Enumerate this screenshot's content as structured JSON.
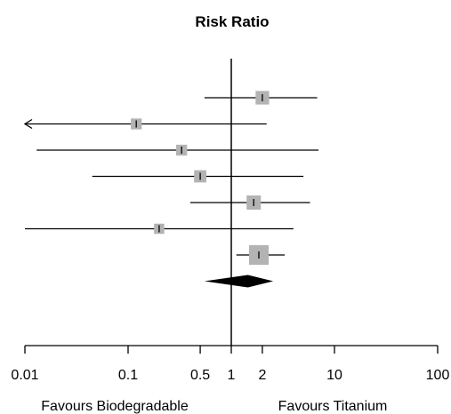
{
  "chart_data": {
    "type": "forest",
    "title": "Risk Ratio",
    "x_scale": "log",
    "xlim": [
      0.01,
      100
    ],
    "null_value": 1,
    "x_ticks": [
      0.01,
      0.1,
      0.5,
      1,
      2,
      10,
      100
    ],
    "x_tick_labels": [
      "0.01",
      "0.1",
      "0.5",
      "1",
      "2",
      "10",
      "100"
    ],
    "favours_left": "Favours Biodegradable",
    "favours_right": "Favours Titanium",
    "colors": {
      "square": "#b3b3b3",
      "line": "#000000",
      "diamond": "#000000"
    },
    "studies": [
      {
        "estimate": 2.0,
        "lower": 0.55,
        "upper": 6.8,
        "weight": 0.55,
        "arrow_left": false,
        "arrow_right": false
      },
      {
        "estimate": 0.12,
        "lower": 0.01,
        "upper": 2.2,
        "weight": 0.35,
        "arrow_left": true,
        "arrow_right": false
      },
      {
        "estimate": 0.33,
        "lower": 0.013,
        "upper": 7.0,
        "weight": 0.35,
        "arrow_left": false,
        "arrow_right": false
      },
      {
        "estimate": 0.5,
        "lower": 0.045,
        "upper": 5.0,
        "weight": 0.45,
        "arrow_left": false,
        "arrow_right": false
      },
      {
        "estimate": 1.65,
        "lower": 0.4,
        "upper": 5.8,
        "weight": 0.6,
        "arrow_left": false,
        "arrow_right": false
      },
      {
        "estimate": 0.2,
        "lower": 0.01,
        "upper": 4.0,
        "weight": 0.3,
        "arrow_left": false,
        "arrow_right": false
      },
      {
        "estimate": 1.85,
        "lower": 1.12,
        "upper": 3.3,
        "weight": 1.0,
        "arrow_left": false,
        "arrow_right": false
      }
    ],
    "pooled": {
      "estimate": 1.45,
      "lower": 0.55,
      "upper": 2.55
    }
  }
}
